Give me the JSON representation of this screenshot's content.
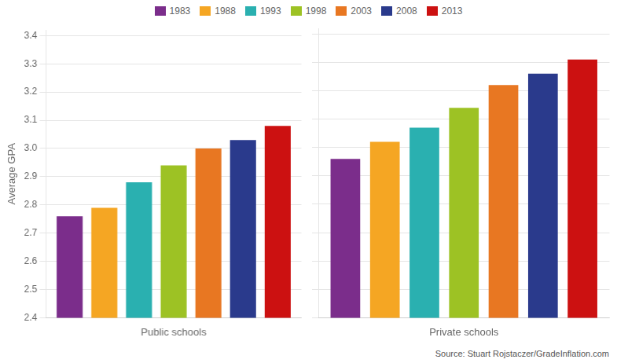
{
  "chart_data": [
    {
      "type": "bar",
      "categories": [
        "Public schools"
      ],
      "series": [
        {
          "name": "1983",
          "color": "#7b2d8b",
          "values": [
            2.76
          ]
        },
        {
          "name": "1988",
          "color": "#f5a623",
          "values": [
            2.79
          ]
        },
        {
          "name": "1993",
          "color": "#2ab0b0",
          "values": [
            2.88
          ]
        },
        {
          "name": "1998",
          "color": "#9dc224",
          "values": [
            2.94
          ]
        },
        {
          "name": "2003",
          "color": "#e87722",
          "values": [
            3.0
          ]
        },
        {
          "name": "2008",
          "color": "#2a3a8c",
          "values": [
            3.03
          ]
        },
        {
          "name": "2013",
          "color": "#cc1111",
          "values": [
            3.08
          ]
        }
      ],
      "ylabel": "Average GPA",
      "ylim": [
        2.4,
        3.42
      ],
      "yticks": [
        2.4,
        2.5,
        2.6,
        2.7,
        2.8,
        2.9,
        {
          "value": 3.0,
          "label": "3.0"
        },
        3.1,
        3.2,
        3.3,
        3.4
      ],
      "grid": true,
      "legend": "top"
    },
    {
      "type": "bar",
      "categories": [
        "Private schools"
      ],
      "series": [
        {
          "name": "1983",
          "color": "#7b2d8b",
          "values": [
            2.96
          ]
        },
        {
          "name": "1988",
          "color": "#f5a623",
          "values": [
            3.02
          ]
        },
        {
          "name": "1993",
          "color": "#2ab0b0",
          "values": [
            3.07
          ]
        },
        {
          "name": "1998",
          "color": "#9dc224",
          "values": [
            3.14
          ]
        },
        {
          "name": "2003",
          "color": "#e87722",
          "values": [
            3.22
          ]
        },
        {
          "name": "2008",
          "color": "#2a3a8c",
          "values": [
            3.26
          ]
        },
        {
          "name": "2013",
          "color": "#cc1111",
          "values": [
            3.31
          ]
        }
      ],
      "ylim": [
        2.4,
        3.42
      ],
      "yticks": [
        2.4,
        2.5,
        2.6,
        2.7,
        2.8,
        2.9,
        {
          "value": 3.0,
          "label": "3.0"
        },
        3.1,
        3.2,
        3.3,
        3.4
      ],
      "grid": true,
      "tick_labels": "x",
      "annotations": [
        "Source: Stuart Rojstaczer/GradeInflation.com"
      ]
    }
  ]
}
